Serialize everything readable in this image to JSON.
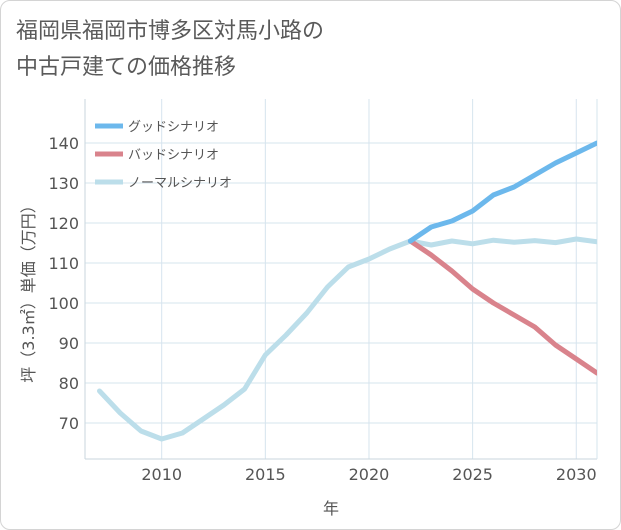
{
  "title_line1": "福岡県福岡市博多区対馬小路の",
  "title_line2": "中古戸建ての価格推移",
  "chart_data": {
    "type": "line",
    "xlabel": "年",
    "ylabel": "坪（3.3㎡）単価（万円）",
    "xlim": [
      2006.3,
      2031
    ],
    "ylim": [
      61,
      151
    ],
    "x_ticks": [
      2010,
      2015,
      2020,
      2025,
      2030
    ],
    "y_ticks": [
      70,
      80,
      90,
      100,
      110,
      120,
      130,
      140
    ],
    "grid": true,
    "legend_position": "top-left",
    "series": [
      {
        "name": "グッドシナリオ",
        "color": "#6cb8ec",
        "x": [
          2022,
          2023,
          2024,
          2025,
          2026,
          2027,
          2028,
          2029,
          2030,
          2031
        ],
        "y": [
          115.5,
          119,
          120.5,
          123,
          127,
          129,
          132,
          135,
          137.5,
          140
        ]
      },
      {
        "name": "バッドシナリオ",
        "color": "#d9838c",
        "x": [
          2022,
          2023,
          2024,
          2025,
          2026,
          2027,
          2028,
          2029,
          2030,
          2031
        ],
        "y": [
          115.5,
          112,
          108,
          103.5,
          100,
          97,
          94,
          89.5,
          86,
          82.5
        ]
      },
      {
        "name": "ノーマルシナリオ",
        "color": "#bcdeea",
        "x": [
          2007,
          2008,
          2009,
          2010,
          2011,
          2012,
          2013,
          2014,
          2015,
          2016,
          2017,
          2018,
          2019,
          2020,
          2021,
          2022,
          2023,
          2024,
          2025,
          2026,
          2027,
          2028,
          2029,
          2030,
          2031
        ],
        "y": [
          78,
          72.5,
          68,
          66,
          67.5,
          71,
          74.5,
          78.5,
          87,
          92,
          97.5,
          104,
          109,
          111,
          113.5,
          115.5,
          114.5,
          115.5,
          114.8,
          115.7,
          115.2,
          115.6,
          115.1,
          116,
          115.3
        ]
      }
    ]
  }
}
